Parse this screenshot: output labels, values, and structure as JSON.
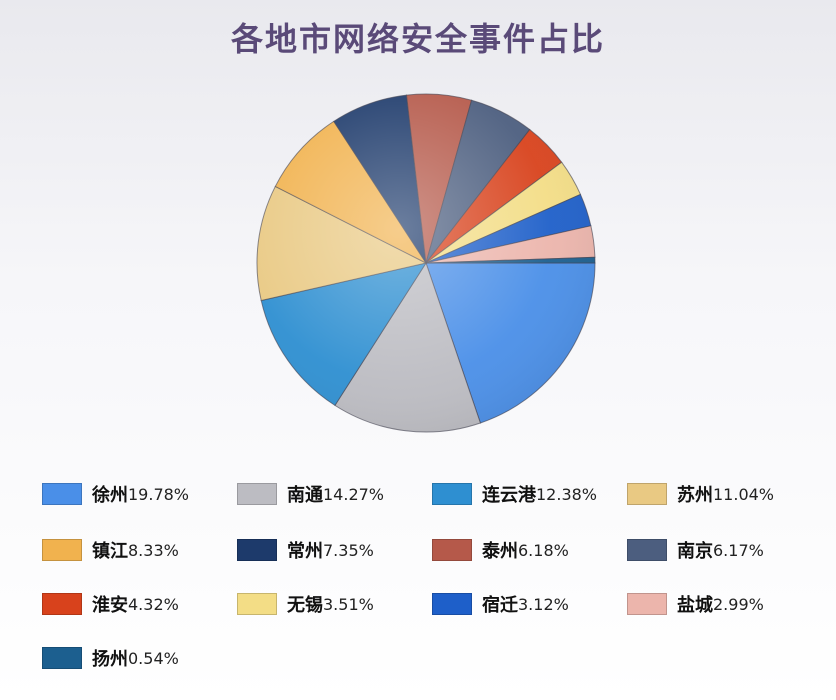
{
  "chart_data": {
    "type": "pie",
    "title": "各地市网络安全事件占比",
    "slices": [
      {
        "label": "徐州",
        "value": 19.78,
        "pct_text": "19.78%",
        "color": "#4a8fe8"
      },
      {
        "label": "南通",
        "value": 14.27,
        "pct_text": "14.27%",
        "color": "#bcbcc2"
      },
      {
        "label": "连云港",
        "value": 12.38,
        "pct_text": "12.38%",
        "color": "#2e8fd1"
      },
      {
        "label": "苏州",
        "value": 11.04,
        "pct_text": "11.04%",
        "color": "#e9c983"
      },
      {
        "label": "镇江",
        "value": 8.33,
        "pct_text": "8.33%",
        "color": "#f1b24e"
      },
      {
        "label": "常州",
        "value": 7.35,
        "pct_text": "7.35%",
        "color": "#1d3a6b"
      },
      {
        "label": "泰州",
        "value": 6.18,
        "pct_text": "6.18%",
        "color": "#b5594a"
      },
      {
        "label": "南京",
        "value": 6.17,
        "pct_text": "6.17%",
        "color": "#4c5e7f"
      },
      {
        "label": "淮安",
        "value": 4.32,
        "pct_text": "4.32%",
        "color": "#d8421c"
      },
      {
        "label": "无锡",
        "value": 3.51,
        "pct_text": "3.51%",
        "color": "#f3dd86"
      },
      {
        "label": "宿迁",
        "value": 3.12,
        "pct_text": "3.12%",
        "color": "#1e5fc9"
      },
      {
        "label": "盐城",
        "value": 2.99,
        "pct_text": "2.99%",
        "color": "#ecb5ac"
      },
      {
        "label": "扬州",
        "value": 0.54,
        "pct_text": "0.54%",
        "color": "#1c5f8f"
      }
    ],
    "legend": "bottom"
  }
}
